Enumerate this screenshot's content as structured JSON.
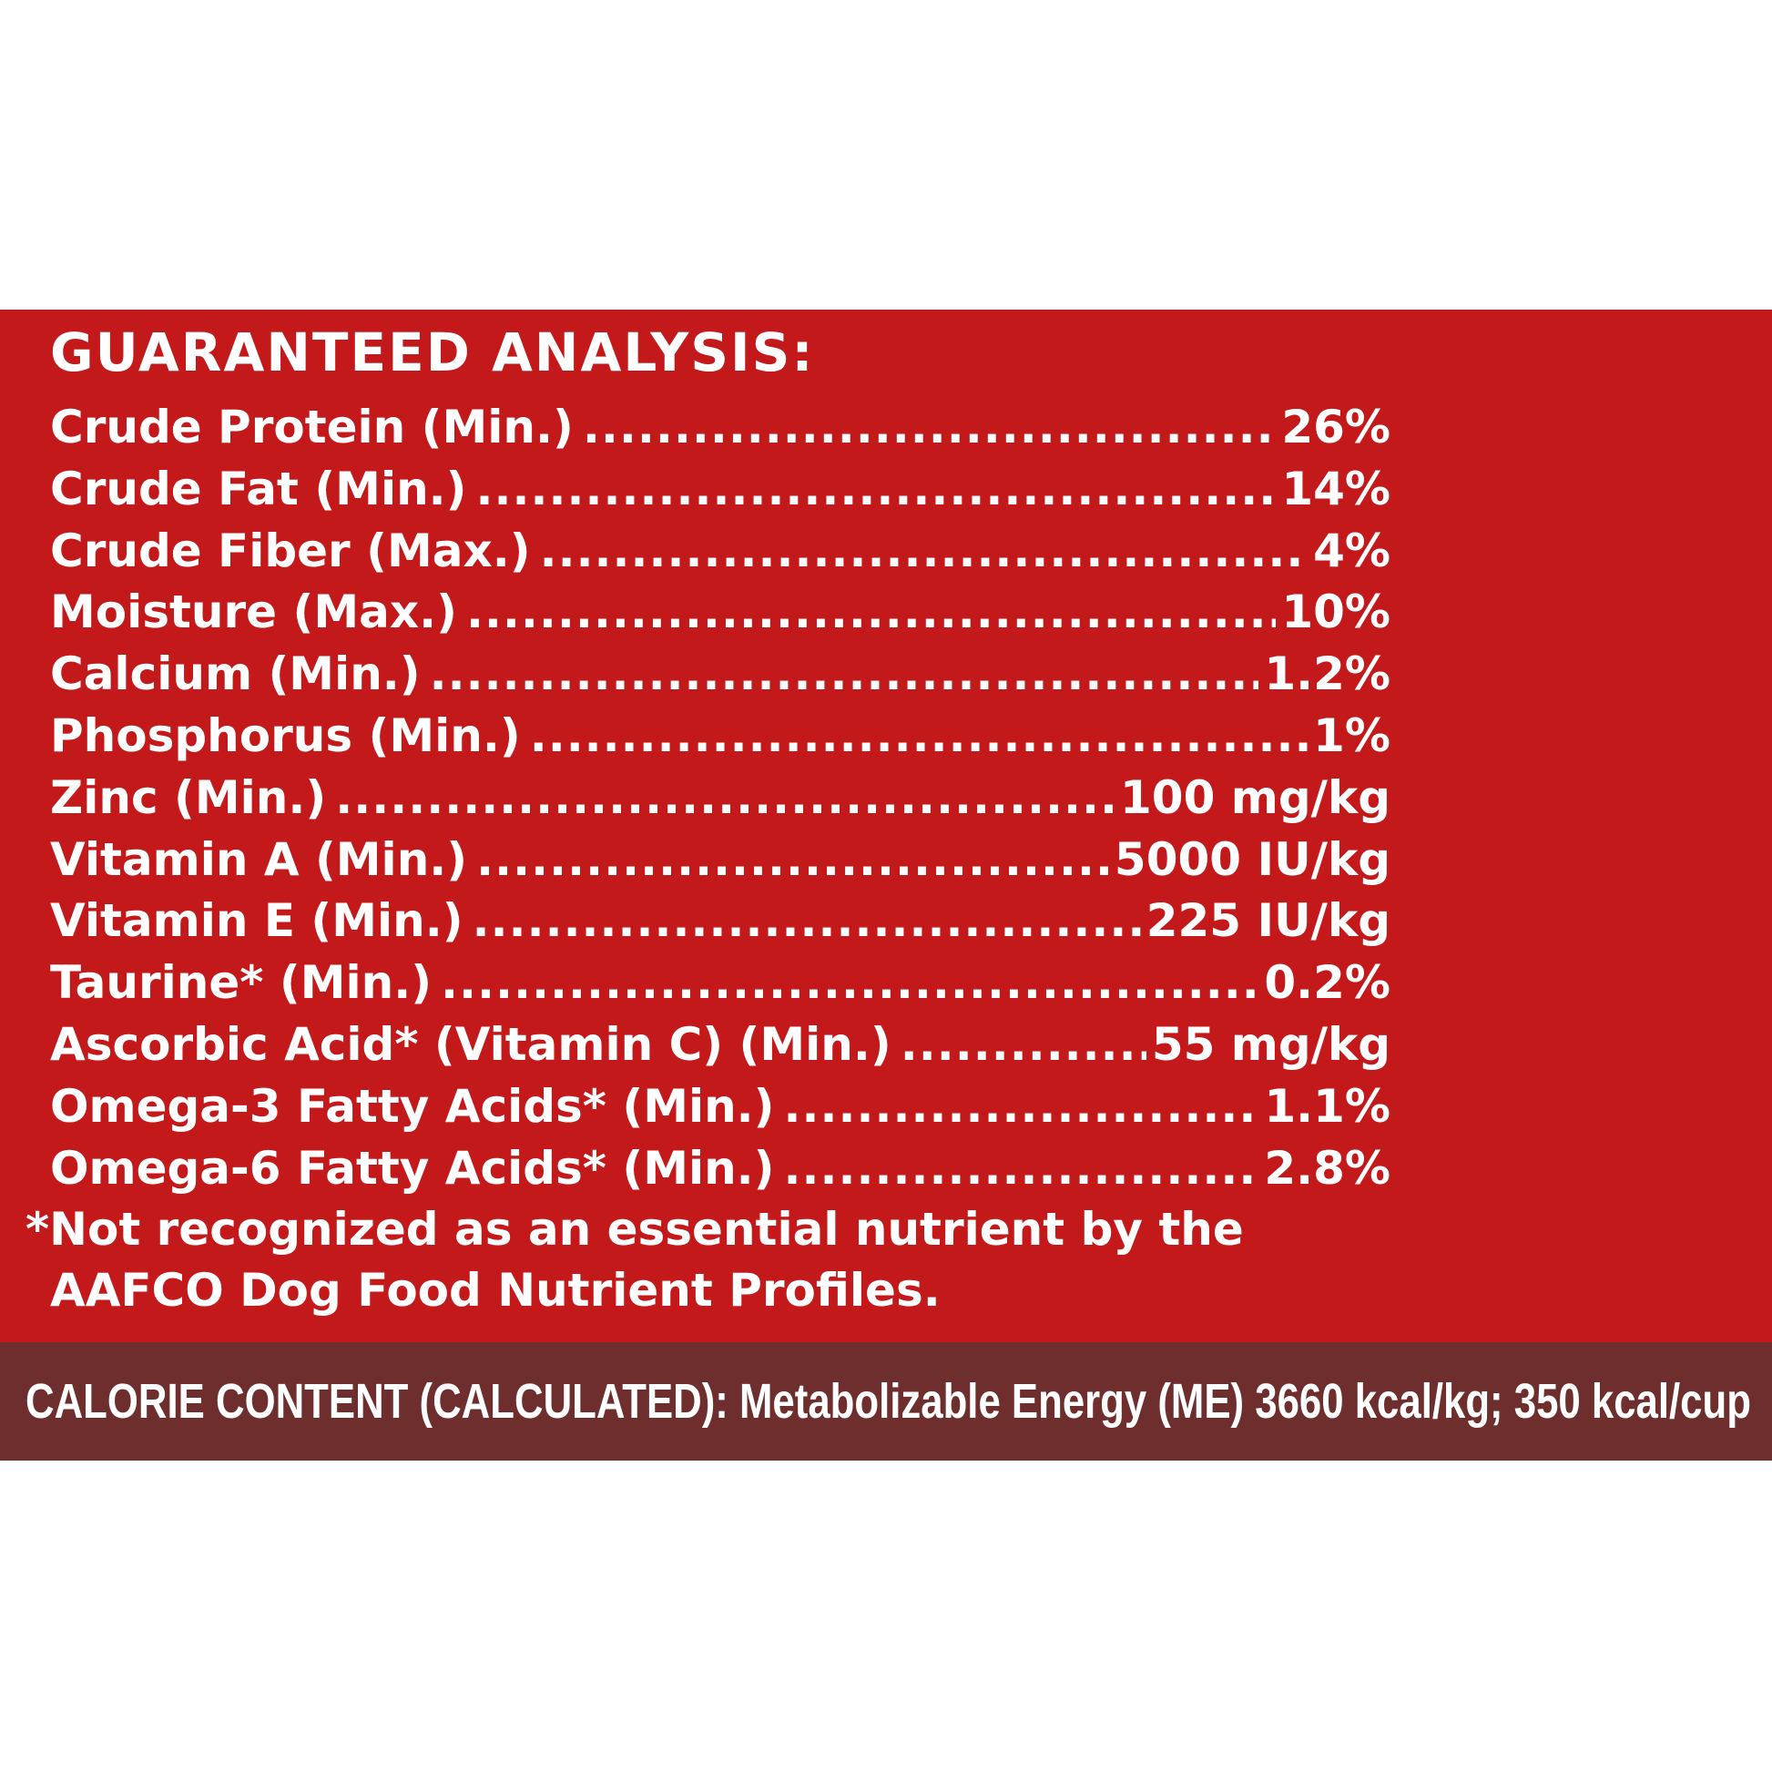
{
  "analysis": {
    "title": "GUARANTEED ANALYSIS:",
    "rows": [
      {
        "label": "Crude Protein (Min.)",
        "value": "26%"
      },
      {
        "label": "Crude Fat (Min.)",
        "value": "14%"
      },
      {
        "label": "Crude Fiber (Max.)",
        "value": "4%"
      },
      {
        "label": "Moisture (Max.)",
        "value": "10%"
      },
      {
        "label": "Calcium (Min.)",
        "value": "1.2%"
      },
      {
        "label": "Phosphorus (Min.)",
        "value": "1%"
      },
      {
        "label": "Zinc (Min.)",
        "value": "100 mg/kg"
      },
      {
        "label": "Vitamin A (Min.)",
        "value": "5000 IU/kg"
      },
      {
        "label": "Vitamin E (Min.)",
        "value": "225 IU/kg"
      },
      {
        "label": "Taurine* (Min.)",
        "value": "0.2%"
      },
      {
        "label": "Ascorbic Acid* (Vitamin C) (Min.)",
        "value": "55 mg/kg"
      },
      {
        "label": "Omega-3 Fatty Acids* (Min.)",
        "value": "1.1%"
      },
      {
        "label": "Omega-6 Fatty Acids* (Min.)",
        "value": "2.8%"
      }
    ],
    "footnote_line1": "*Not recognized as an essential nutrient by the",
    "footnote_line2": "AAFCO Dog Food Nutrient Profiles."
  },
  "calorie": {
    "text": "CALORIE CONTENT (CALCULATED): Metabolizable Energy (ME) 3660 kcal/kg; 350 kcal/cup"
  },
  "colors": {
    "red_panel": "#c4191b",
    "brown_band": "#6e2e2e",
    "text": "#ffffff"
  }
}
